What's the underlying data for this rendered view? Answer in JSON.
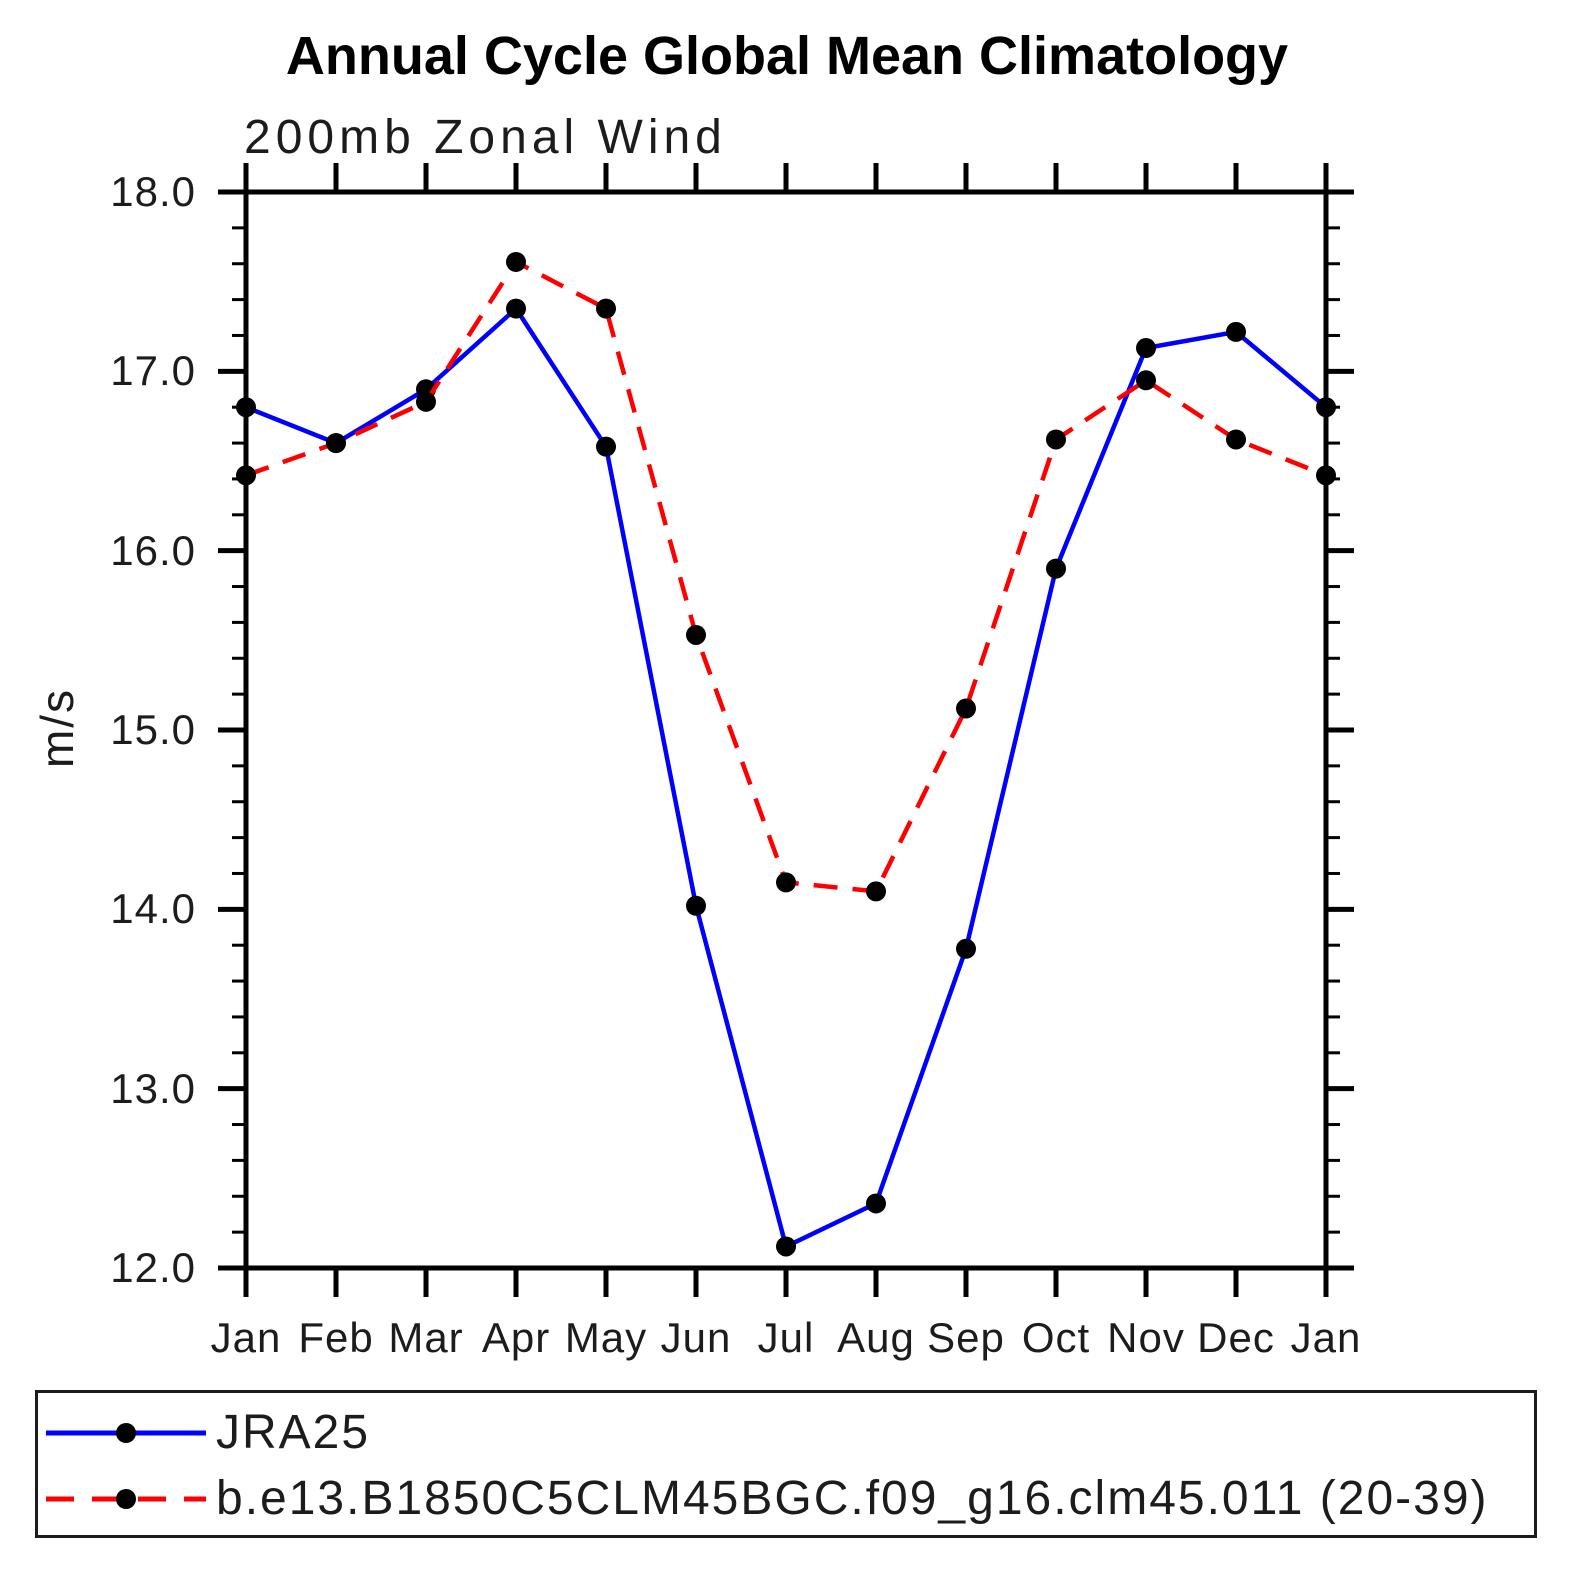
{
  "header": {
    "title": "Annual Cycle Global Mean Climatology",
    "subtitle": "200mb Zonal Wind"
  },
  "chart_data": {
    "type": "line",
    "title": "Annual Cycle Global Mean Climatology",
    "subtitle": "200mb Zonal Wind",
    "xlabel": "",
    "ylabel": "m/s",
    "x_tick_labels": [
      "Jan",
      "Feb",
      "Mar",
      "Apr",
      "May",
      "Jun",
      "Jul",
      "Aug",
      "Sep",
      "Oct",
      "Nov",
      "Dec",
      "Jan"
    ],
    "y_ticks": [
      12.0,
      13.0,
      14.0,
      15.0,
      16.0,
      17.0,
      18.0
    ],
    "y_tick_labels": [
      "12.0",
      "13.0",
      "14.0",
      "15.0",
      "16.0",
      "17.0",
      "18.0"
    ],
    "ylim": [
      12.0,
      18.0
    ],
    "y_minor_step": 0.2,
    "grid": false,
    "legend_position": "bottom-box",
    "marker": {
      "shape": "circle",
      "color": "#000000",
      "radius": 10
    },
    "axis_color": "#000000",
    "series": [
      {
        "name": "JRA25",
        "color": "#0000ff",
        "style": "solid",
        "values": [
          16.8,
          16.6,
          16.9,
          17.35,
          16.58,
          14.02,
          12.12,
          12.36,
          13.78,
          15.9,
          17.13,
          17.22,
          16.8
        ]
      },
      {
        "name": "b.e13.B1850C5CLM45BGC.f09_g16.clm45.011 (20-39)",
        "color": "#ff0000",
        "style": "dashed",
        "values": [
          16.42,
          16.6,
          16.83,
          17.61,
          17.35,
          15.53,
          14.15,
          14.1,
          15.12,
          16.62,
          16.95,
          16.62,
          16.42
        ]
      }
    ]
  }
}
